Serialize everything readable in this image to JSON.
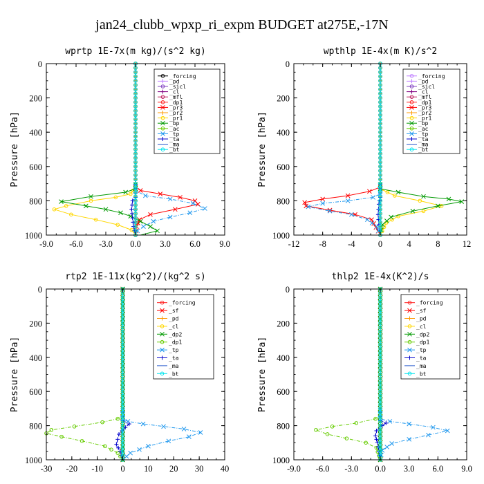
{
  "title": "jan24_clubb_wpxp_ri_expm  BUDGET at275E,-17N",
  "chart_data": [
    {
      "type": "line",
      "title": "wprtp  1E-7x(m kg)/(s^2 kg)",
      "ylabel": "Pressure [hPa]",
      "xlim": [
        -9,
        9
      ],
      "ylim": [
        1000,
        0
      ],
      "xticks": [
        -9,
        -6,
        -3,
        0,
        3,
        6,
        9
      ],
      "xtick_labels": [
        "-9.0",
        "-6.0",
        "-3.0",
        "0.0",
        "3.0",
        "6.0",
        "9.0"
      ],
      "yticks": [
        0,
        200,
        400,
        600,
        800,
        1000
      ],
      "ytick_labels": [
        "0",
        "200",
        "400",
        "600",
        "800",
        "1000"
      ],
      "legend_position": "top-right",
      "series": [
        {
          "name": "_forcing",
          "color": "#000000",
          "marker": "o",
          "x": [
            0,
            0
          ],
          "y": [
            0,
            1000
          ]
        },
        {
          "name": "_pd",
          "color": "#c080ff",
          "marker": "+",
          "x": [
            0,
            0
          ],
          "y": [
            0,
            1000
          ]
        },
        {
          "name": "_sicl",
          "color": "#8040c0",
          "marker": "o",
          "x": [
            0,
            0
          ],
          "y": [
            0,
            1000
          ]
        },
        {
          "name": "_cl",
          "color": "#800080",
          "marker": "+",
          "x": [
            0,
            0
          ],
          "y": [
            0,
            1000
          ]
        },
        {
          "name": "_mfl",
          "color": "#c0205f",
          "marker": "o",
          "x": [
            0,
            0
          ],
          "y": [
            0,
            1000
          ]
        },
        {
          "name": "_dp1",
          "color": "#ff2020",
          "marker": "o",
          "x": [
            0,
            0
          ],
          "y": [
            0,
            1000
          ]
        },
        {
          "name": "_pr3",
          "color": "#ff0000",
          "marker": "x",
          "x": [
            0,
            0,
            0.5,
            2.5,
            4.5,
            6.0,
            6.3,
            4.0,
            1.5,
            0.4,
            0.1,
            0
          ],
          "y": [
            0,
            720,
            740,
            760,
            780,
            800,
            820,
            850,
            880,
            910,
            950,
            1000
          ]
        },
        {
          "name": "_pr2",
          "color": "#ff9900",
          "marker": "+",
          "x": [
            0,
            0
          ],
          "y": [
            0,
            1000
          ]
        },
        {
          "name": "_pr1",
          "color": "#ffd700",
          "marker": "o",
          "x": [
            0,
            0,
            -0.5,
            -2.0,
            -4.5,
            -7.0,
            -8.2,
            -6.5,
            -4.0,
            -1.8,
            -0.4,
            0
          ],
          "y": [
            0,
            720,
            760,
            780,
            800,
            830,
            850,
            880,
            910,
            940,
            970,
            1000
          ]
        },
        {
          "name": "_bp",
          "color": "#009900",
          "marker": "x",
          "x": [
            0,
            0,
            -1.0,
            -4.5,
            -7.5,
            -5.0,
            -3.0,
            -1.5,
            -0.5,
            0.5,
            1.5,
            2.2,
            0.5
          ],
          "y": [
            0,
            730,
            750,
            775,
            805,
            830,
            850,
            870,
            890,
            920,
            950,
            975,
            1000
          ]
        },
        {
          "name": "_ac",
          "color": "#66cc00",
          "marker": "o",
          "x": [
            0,
            0
          ],
          "y": [
            0,
            1000
          ]
        },
        {
          "name": "_tp",
          "color": "#2299ee",
          "marker": "x",
          "x": [
            0,
            0,
            1.0,
            3.5,
            5.8,
            7.0,
            5.5,
            3.5,
            1.8,
            0.8,
            0.2,
            0
          ],
          "y": [
            0,
            740,
            770,
            790,
            815,
            845,
            870,
            895,
            920,
            950,
            975,
            1000
          ]
        },
        {
          "name": "_ta",
          "color": "#0000cc",
          "marker": "+",
          "x": [
            0,
            0,
            -0.3,
            -0.4,
            -0.3,
            -0.2,
            0
          ],
          "y": [
            0,
            780,
            800,
            850,
            900,
            950,
            1000
          ]
        },
        {
          "name": "_ma",
          "color": "#2255cc",
          "marker": "-",
          "x": [
            0,
            0
          ],
          "y": [
            0,
            1000
          ]
        },
        {
          "name": "_bt",
          "color": "#00e5ee",
          "marker": "o",
          "x": [
            0,
            0
          ],
          "y": [
            0,
            1000
          ]
        }
      ]
    },
    {
      "type": "line",
      "title": "wpthlp  1E-4x(m K)/s^2",
      "ylabel": "Pressure [hPa]",
      "xlim": [
        -12,
        12
      ],
      "ylim": [
        1000,
        0
      ],
      "xticks": [
        -12,
        -8,
        -4,
        0,
        4,
        8,
        12
      ],
      "xtick_labels": [
        "-12",
        "-8",
        "-4",
        "0",
        "4",
        "8",
        "12"
      ],
      "yticks": [
        0,
        200,
        400,
        600,
        800,
        1000
      ],
      "ytick_labels": [
        "0",
        "200",
        "400",
        "600",
        "800",
        "1000"
      ],
      "legend_position": "top-right",
      "series": [
        {
          "name": "_forcing",
          "color": "#c080ff",
          "marker": "o",
          "x": [
            0,
            0
          ],
          "y": [
            0,
            1000
          ]
        },
        {
          "name": "_pd",
          "color": "#c080ff",
          "marker": "+",
          "x": [
            0,
            0
          ],
          "y": [
            0,
            1000
          ]
        },
        {
          "name": "_sicl",
          "color": "#8040c0",
          "marker": "o",
          "x": [
            0,
            0
          ],
          "y": [
            0,
            1000
          ]
        },
        {
          "name": "_cl",
          "color": "#800080",
          "marker": "+",
          "x": [
            0,
            0
          ],
          "y": [
            0,
            1000
          ]
        },
        {
          "name": "_mfl",
          "color": "#c0205f",
          "marker": "o",
          "x": [
            0,
            0
          ],
          "y": [
            0,
            1000
          ]
        },
        {
          "name": "_dp1",
          "color": "#ff2020",
          "marker": "o",
          "x": [
            0,
            0
          ],
          "y": [
            0,
            1000
          ]
        },
        {
          "name": "_pr3",
          "color": "#ff0000",
          "marker": "x",
          "x": [
            0,
            0,
            -1.5,
            -4.5,
            -8.0,
            -10.5,
            -10.3,
            -7.0,
            -3.5,
            -1.2,
            0
          ],
          "y": [
            0,
            720,
            745,
            770,
            790,
            810,
            830,
            855,
            880,
            910,
            1000
          ]
        },
        {
          "name": "_pr2",
          "color": "#ff9900",
          "marker": "+",
          "x": [
            0,
            0
          ],
          "y": [
            0,
            1000
          ]
        },
        {
          "name": "_pr1",
          "color": "#ffd700",
          "marker": "o",
          "x": [
            0,
            0,
            2.0,
            5.5,
            8.5,
            6.0,
            2.5,
            0.8,
            0
          ],
          "y": [
            0,
            730,
            770,
            800,
            830,
            860,
            890,
            930,
            1000
          ]
        },
        {
          "name": "_bp",
          "color": "#009900",
          "marker": "x",
          "x": [
            0,
            0,
            2.5,
            6.0,
            9.5,
            11.3,
            8.0,
            4.5,
            1.5,
            0.3,
            0
          ],
          "y": [
            0,
            730,
            750,
            775,
            790,
            805,
            830,
            860,
            895,
            940,
            1000
          ]
        },
        {
          "name": "_ac",
          "color": "#66cc00",
          "marker": "o",
          "x": [
            0,
            0
          ],
          "y": [
            0,
            1000
          ]
        },
        {
          "name": "_tp",
          "color": "#2299ee",
          "marker": "x",
          "x": [
            0,
            0,
            -1.0,
            -4.5,
            -8.0,
            -10.0,
            -7.0,
            -4.0,
            -1.8,
            -0.5,
            0
          ],
          "y": [
            0,
            760,
            780,
            800,
            815,
            835,
            860,
            880,
            910,
            950,
            1000
          ]
        },
        {
          "name": "_ta",
          "color": "#0000cc",
          "marker": "+",
          "x": [
            0,
            0,
            -0.2,
            -0.3,
            -0.2,
            0
          ],
          "y": [
            0,
            780,
            820,
            880,
            940,
            1000
          ]
        },
        {
          "name": "_ma",
          "color": "#2255cc",
          "marker": "-",
          "x": [
            0,
            0
          ],
          "y": [
            0,
            1000
          ]
        },
        {
          "name": "_bt",
          "color": "#00e5ee",
          "marker": "o",
          "x": [
            0,
            0
          ],
          "y": [
            0,
            1000
          ]
        }
      ]
    },
    {
      "type": "line",
      "title": "rtp2  1E-11x(kg^2)/(kg^2 s)",
      "ylabel": "Pressure [hPa]",
      "xlim": [
        -30,
        40
      ],
      "ylim": [
        1000,
        0
      ],
      "xticks": [
        -30,
        -20,
        -10,
        0,
        10,
        20,
        30,
        40
      ],
      "xtick_labels": [
        "-30",
        "-20",
        "-10",
        "0",
        "10",
        "20",
        "30",
        "40"
      ],
      "yticks": [
        0,
        200,
        400,
        600,
        800,
        1000
      ],
      "ytick_labels": [
        "0",
        "200",
        "400",
        "600",
        "800",
        "1000"
      ],
      "legend_position": "top-right",
      "series": [
        {
          "name": "_forcing",
          "color": "#ff2020",
          "marker": "o",
          "x": [
            0,
            0
          ],
          "y": [
            0,
            1000
          ]
        },
        {
          "name": "_sf",
          "color": "#ff0000",
          "marker": "x",
          "x": [
            0,
            0
          ],
          "y": [
            0,
            1000
          ]
        },
        {
          "name": "_pd",
          "color": "#ff9900",
          "marker": "+",
          "x": [
            0,
            0
          ],
          "y": [
            0,
            1000
          ]
        },
        {
          "name": "_cl",
          "color": "#ffd700",
          "marker": "o",
          "x": [
            0,
            0
          ],
          "y": [
            0,
            1000
          ]
        },
        {
          "name": "_dp2",
          "color": "#009900",
          "marker": "x",
          "x": [
            0,
            0
          ],
          "y": [
            0,
            1000
          ]
        },
        {
          "name": "_dp1",
          "color": "#66cc00",
          "marker": "o",
          "x": [
            0,
            0,
            -2.0,
            -8.0,
            -19.0,
            -28.0,
            -30.0,
            -24.0,
            -16.0,
            -7.0,
            -2.0,
            0
          ],
          "y": [
            0,
            740,
            760,
            780,
            805,
            825,
            845,
            865,
            890,
            920,
            960,
            1000
          ]
        },
        {
          "name": "_tp",
          "color": "#2299ee",
          "marker": "x",
          "x": [
            0,
            0,
            2.0,
            8.0,
            16.0,
            24.0,
            30.5,
            26.0,
            18.0,
            10.0,
            3.0,
            0
          ],
          "y": [
            0,
            760,
            775,
            790,
            805,
            820,
            840,
            865,
            890,
            920,
            960,
            1000
          ]
        },
        {
          "name": "_ta",
          "color": "#0000cc",
          "marker": "+",
          "x": [
            0,
            0,
            2.5,
            1.0,
            -1.5,
            -2.0,
            -2.5,
            -1.0,
            0
          ],
          "y": [
            0,
            770,
            790,
            810,
            850,
            880,
            910,
            950,
            1000
          ]
        },
        {
          "name": "_ma",
          "color": "#2255cc",
          "marker": "-",
          "x": [
            0,
            0
          ],
          "y": [
            0,
            1000
          ]
        },
        {
          "name": "_bt",
          "color": "#00e5ee",
          "marker": "o",
          "x": [
            0,
            0
          ],
          "y": [
            0,
            1000
          ]
        }
      ]
    },
    {
      "type": "line",
      "title": "thlp2  1E-4x(K^2)/s",
      "ylabel": "Pressure [hPa]",
      "xlim": [
        -9,
        9
      ],
      "ylim": [
        1000,
        0
      ],
      "xticks": [
        -9,
        -6,
        -3,
        0,
        3,
        6,
        9
      ],
      "xtick_labels": [
        "-9.0",
        "-6.0",
        "-3.0",
        "0.0",
        "3.0",
        "6.0",
        "9.0"
      ],
      "yticks": [
        0,
        200,
        400,
        600,
        800,
        1000
      ],
      "ytick_labels": [
        "0",
        "200",
        "400",
        "600",
        "800",
        "1000"
      ],
      "legend_position": "top-right",
      "series": [
        {
          "name": "_forcing",
          "color": "#ff2020",
          "marker": "o",
          "x": [
            0,
            0
          ],
          "y": [
            0,
            1000
          ]
        },
        {
          "name": "_sf",
          "color": "#ff0000",
          "marker": "x",
          "x": [
            0,
            0
          ],
          "y": [
            0,
            1000
          ]
        },
        {
          "name": "_pd",
          "color": "#ff9900",
          "marker": "+",
          "x": [
            0,
            0
          ],
          "y": [
            0,
            1000
          ]
        },
        {
          "name": "_cl",
          "color": "#ffd700",
          "marker": "o",
          "x": [
            0,
            0
          ],
          "y": [
            0,
            1000
          ]
        },
        {
          "name": "_dp2",
          "color": "#009900",
          "marker": "x",
          "x": [
            0,
            0
          ],
          "y": [
            0,
            1000
          ]
        },
        {
          "name": "_dp1",
          "color": "#66cc00",
          "marker": "o",
          "x": [
            0,
            0,
            -0.5,
            -2.5,
            -5.0,
            -6.7,
            -5.5,
            -3.5,
            -1.5,
            -0.4,
            0
          ],
          "y": [
            0,
            740,
            760,
            785,
            805,
            825,
            850,
            875,
            900,
            930,
            1000
          ]
        },
        {
          "name": "_tp",
          "color": "#2299ee",
          "marker": "x",
          "x": [
            0,
            0,
            1.0,
            3.0,
            5.5,
            7.0,
            5.0,
            3.0,
            1.2,
            0.2,
            0
          ],
          "y": [
            0,
            760,
            775,
            790,
            810,
            830,
            855,
            880,
            905,
            945,
            1000
          ]
        },
        {
          "name": "_ta",
          "color": "#0000cc",
          "marker": "+",
          "x": [
            0,
            0,
            0.6,
            0.2,
            -0.4,
            -0.5,
            -0.3,
            0
          ],
          "y": [
            0,
            770,
            785,
            800,
            830,
            860,
            900,
            1000
          ]
        },
        {
          "name": "_ma",
          "color": "#2255cc",
          "marker": "-",
          "x": [
            0,
            0
          ],
          "y": [
            0,
            1000
          ]
        },
        {
          "name": "_bt",
          "color": "#00e5ee",
          "marker": "o",
          "x": [
            0,
            0
          ],
          "y": [
            0,
            1000
          ]
        }
      ]
    }
  ]
}
